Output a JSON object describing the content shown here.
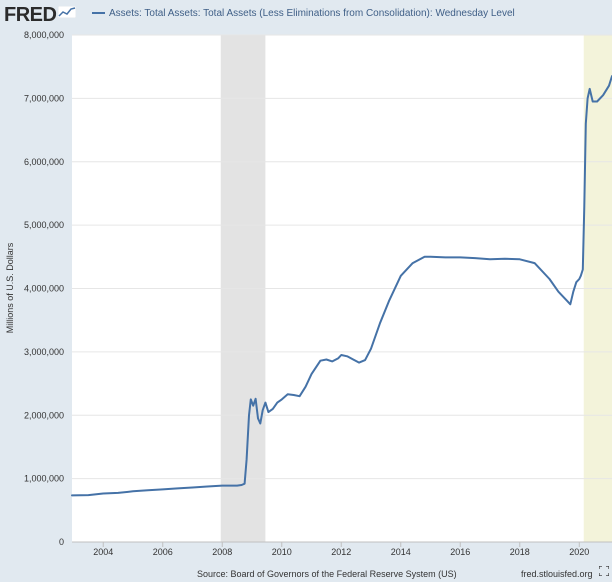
{
  "logo_text": "FRED",
  "colors": {
    "series": "#4572a7",
    "background": "#e1e9f0",
    "plot": "#ffffff",
    "recession": "#e3e3e3",
    "highlight": "#f3f3da"
  },
  "chart_data": {
    "type": "line",
    "title": "Assets: Total Assets: Total Assets (Less Eliminations from Consolidation): Wednesday Level",
    "xlabel": "",
    "ylabel": "Millions of U.S. Dollars",
    "xlim": [
      2002.95,
      2021.1
    ],
    "ylim": [
      0,
      8000000
    ],
    "x_ticks": [
      2004,
      2006,
      2008,
      2010,
      2012,
      2014,
      2016,
      2018,
      2020
    ],
    "y_ticks": [
      0,
      1000000,
      2000000,
      3000000,
      4000000,
      5000000,
      6000000,
      7000000,
      8000000
    ],
    "y_tick_labels": [
      "0",
      "1,000,000",
      "2,000,000",
      "3,000,000",
      "4,000,000",
      "5,000,000",
      "6,000,000",
      "7,000,000",
      "8,000,000"
    ],
    "shaded_regions": [
      {
        "type": "recession",
        "x": [
          2007.95,
          2009.45
        ]
      },
      {
        "type": "highlight",
        "x": [
          2020.15,
          2021.1
        ]
      }
    ],
    "series": [
      {
        "name": "Assets: Total Assets: Total Assets (Less Eliminations from Consolidation): Wednesday Level",
        "x": [
          2002.95,
          2003.5,
          2004.0,
          2004.5,
          2005.0,
          2005.5,
          2006.0,
          2006.5,
          2007.0,
          2007.5,
          2008.0,
          2008.5,
          2008.65,
          2008.75,
          2008.82,
          2008.9,
          2008.96,
          2009.04,
          2009.12,
          2009.2,
          2009.28,
          2009.36,
          2009.45,
          2009.55,
          2009.7,
          2009.85,
          2010.0,
          2010.2,
          2010.4,
          2010.6,
          2010.8,
          2011.0,
          2011.3,
          2011.5,
          2011.7,
          2011.9,
          2012.0,
          2012.2,
          2012.4,
          2012.6,
          2012.8,
          2013.0,
          2013.3,
          2013.6,
          2014.0,
          2014.4,
          2014.8,
          2015.0,
          2015.5,
          2016.0,
          2016.5,
          2017.0,
          2017.5,
          2018.0,
          2018.5,
          2019.0,
          2019.3,
          2019.6,
          2019.7,
          2019.8,
          2019.9,
          2020.0,
          2020.05,
          2020.12,
          2020.17,
          2020.22,
          2020.28,
          2020.35,
          2020.45,
          2020.6,
          2020.8,
          2021.0,
          2021.1
        ],
        "values": [
          735000,
          740000,
          765000,
          775000,
          800000,
          815000,
          830000,
          845000,
          860000,
          875000,
          890000,
          890000,
          900000,
          920000,
          1300000,
          2000000,
          2250000,
          2150000,
          2260000,
          1950000,
          1870000,
          2080000,
          2200000,
          2050000,
          2100000,
          2200000,
          2250000,
          2330000,
          2320000,
          2300000,
          2450000,
          2650000,
          2860000,
          2880000,
          2850000,
          2900000,
          2950000,
          2930000,
          2880000,
          2830000,
          2870000,
          3050000,
          3450000,
          3800000,
          4200000,
          4400000,
          4500000,
          4500000,
          4490000,
          4490000,
          4480000,
          4460000,
          4470000,
          4460000,
          4400000,
          4150000,
          3950000,
          3800000,
          3750000,
          3950000,
          4100000,
          4150000,
          4200000,
          4300000,
          5300000,
          6600000,
          7000000,
          7150000,
          6950000,
          6950000,
          7050000,
          7200000,
          7350000
        ]
      }
    ]
  },
  "source_text": "Source: Board of Governors of the Federal Reserve System (US)",
  "site_text": "fred.stlouisfed.org"
}
